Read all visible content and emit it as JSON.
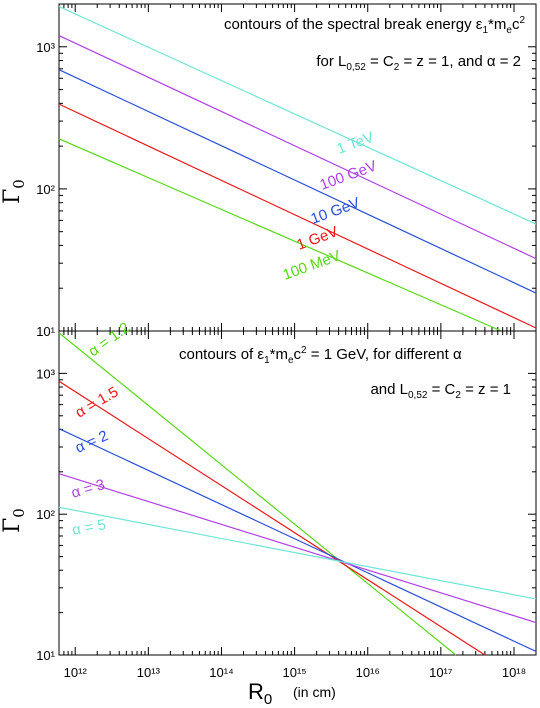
{
  "colors": {
    "cyan": "#6fe6d6",
    "purple": "#b040e8",
    "blue": "#2a4fd6",
    "red": "#e81818",
    "green": "#58d818"
  },
  "chart_data": [
    {
      "type": "line",
      "panel": "top",
      "annotations": [
        "contours of the spectral break energy ε₁*mₑc²",
        "for L₀,₅₂ = C₂ = z = 1, and α = 2"
      ],
      "xlabel": "",
      "ylabel": "Γ₀",
      "xscale": "log",
      "yscale": "log",
      "xlim": [
        600000000000.0,
        2e+18
      ],
      "ylim": [
        10,
        2000
      ],
      "y_ticks": [
        10,
        100,
        1000
      ],
      "y_tick_labels": [
        "10¹",
        "10²",
        "10³"
      ],
      "series": [
        {
          "name": "1 TeV",
          "color": "cyan",
          "x": [
            600000000000.0,
            2e+18
          ],
          "y": [
            1920,
            56.6
          ]
        },
        {
          "name": "100 GeV",
          "color": "purple",
          "x": [
            600000000000.0,
            2e+18
          ],
          "y": [
            1200,
            32.3
          ]
        },
        {
          "name": "10 GeV",
          "color": "blue",
          "x": [
            600000000000.0,
            2e+18
          ],
          "y": [
            690,
            18.5
          ]
        },
        {
          "name": "1 GeV",
          "color": "red",
          "x": [
            600000000000.0,
            2e+18
          ],
          "y": [
            395,
            10.5
          ]
        },
        {
          "name": "100 MeV",
          "color": "green",
          "x": [
            600000000000.0,
            6.7e+17
          ],
          "y": [
            225,
            10
          ]
        }
      ]
    },
    {
      "type": "line",
      "panel": "bottom",
      "annotations": [
        "contours of ε₁*mₑc² = 1 GeV, for different α",
        "and L₀,₅₂ = C₂ = z = 1"
      ],
      "xlabel": "R₀",
      "xlabel_unit": "(in cm)",
      "ylabel": "Γ₀",
      "xscale": "log",
      "yscale": "log",
      "xlim": [
        600000000000.0,
        2e+18
      ],
      "ylim": [
        10,
        2000
      ],
      "x_ticks": [
        1000000000000.0,
        10000000000000.0,
        100000000000000.0,
        1000000000000000.0,
        1e+16,
        1e+17,
        1e+18
      ],
      "x_tick_labels": [
        "10¹²",
        "10¹³",
        "10¹⁴",
        "10¹⁵",
        "10¹⁶",
        "10¹⁷",
        "10¹⁸"
      ],
      "y_ticks": [
        10,
        100,
        1000
      ],
      "y_tick_labels": [
        "10¹",
        "10²",
        "10³"
      ],
      "series": [
        {
          "name": "α = 1.2",
          "color": "green",
          "x": [
            600000000000.0,
            1.6e+17
          ],
          "y": [
            1940,
            10
          ]
        },
        {
          "name": "α = 1.5",
          "color": "red",
          "x": [
            600000000000.0,
            4e+17
          ],
          "y": [
            880,
            10
          ]
        },
        {
          "name": "α = 2",
          "color": "blue",
          "x": [
            600000000000.0,
            2e+18
          ],
          "y": [
            405,
            10.6
          ]
        },
        {
          "name": "α = 3",
          "color": "purple",
          "x": [
            600000000000.0,
            2e+18
          ],
          "y": [
            194,
            17
          ]
        },
        {
          "name": "α = 5",
          "color": "cyan",
          "x": [
            600000000000.0,
            2e+18
          ],
          "y": [
            112,
            25
          ]
        }
      ]
    }
  ]
}
